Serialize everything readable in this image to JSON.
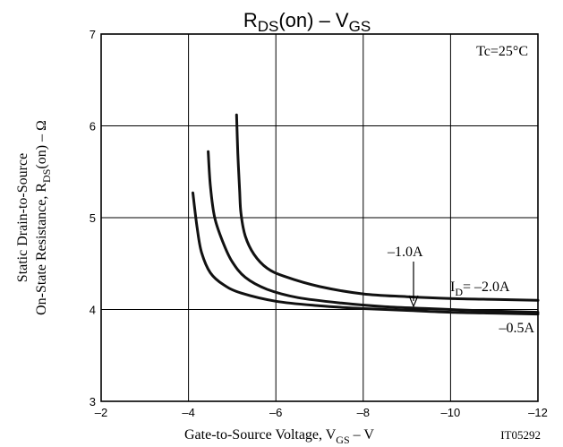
{
  "chart_data": {
    "type": "line",
    "title": {
      "main": "R",
      "sub1": "DS",
      "mid": "(on)  –  V",
      "sub2": "GS"
    },
    "condition": "Tc=25°C",
    "xlabel": {
      "pre": "Gate-to-Source Voltage, V",
      "sub": "GS",
      "post": "  –  V"
    },
    "ylabel": {
      "line1": "Static Drain-to-Source",
      "line2_pre": "On-State Resistance, R",
      "line2_sub": "DS",
      "line2_post": "(on)  –  Ω"
    },
    "xlim": [
      -2,
      -12
    ],
    "ylim": [
      3,
      7
    ],
    "x_ticks": [
      -2,
      -4,
      -6,
      -8,
      -10,
      -12
    ],
    "x_tick_labels": [
      "–2",
      "–4",
      "–6",
      "–8",
      "–10",
      "–12"
    ],
    "y_ticks": [
      3,
      4,
      5,
      6,
      7
    ],
    "y_tick_labels": [
      "3",
      "4",
      "5",
      "6",
      "7"
    ],
    "grid": true,
    "figure_code": "IT05292",
    "labels": {
      "id_pre": "I",
      "id_sub": "D",
      "id_post": "= –2.0A",
      "mid": "–1.0A",
      "low": "–0.5A"
    },
    "series": [
      {
        "name": "–0.5A",
        "points": [
          [
            -4.1,
            5.27
          ],
          [
            -4.2,
            4.88
          ],
          [
            -4.3,
            4.62
          ],
          [
            -4.5,
            4.4
          ],
          [
            -4.8,
            4.27
          ],
          [
            -5.2,
            4.18
          ],
          [
            -6,
            4.09
          ],
          [
            -7,
            4.04
          ],
          [
            -8,
            4.01
          ],
          [
            -9,
            3.99
          ],
          [
            -10,
            3.97
          ],
          [
            -11,
            3.96
          ],
          [
            -12,
            3.95
          ]
        ]
      },
      {
        "name": "–1.0A",
        "points": [
          [
            -4.45,
            5.72
          ],
          [
            -4.5,
            5.35
          ],
          [
            -4.6,
            5.0
          ],
          [
            -4.8,
            4.72
          ],
          [
            -5.0,
            4.52
          ],
          [
            -5.3,
            4.35
          ],
          [
            -5.8,
            4.22
          ],
          [
            -6.5,
            4.13
          ],
          [
            -7.5,
            4.07
          ],
          [
            -8.5,
            4.03
          ],
          [
            -9.5,
            4.01
          ],
          [
            -10.5,
            3.99
          ],
          [
            -12,
            3.97
          ]
        ]
      },
      {
        "name": "–2.0A",
        "points": [
          [
            -5.1,
            6.12
          ],
          [
            -5.13,
            5.7
          ],
          [
            -5.17,
            5.3
          ],
          [
            -5.2,
            5.05
          ],
          [
            -5.3,
            4.8
          ],
          [
            -5.5,
            4.6
          ],
          [
            -5.8,
            4.45
          ],
          [
            -6.2,
            4.36
          ],
          [
            -7,
            4.25
          ],
          [
            -8,
            4.17
          ],
          [
            -9,
            4.14
          ],
          [
            -10,
            4.12
          ],
          [
            -11,
            4.11
          ],
          [
            -12,
            4.1
          ]
        ]
      }
    ]
  }
}
